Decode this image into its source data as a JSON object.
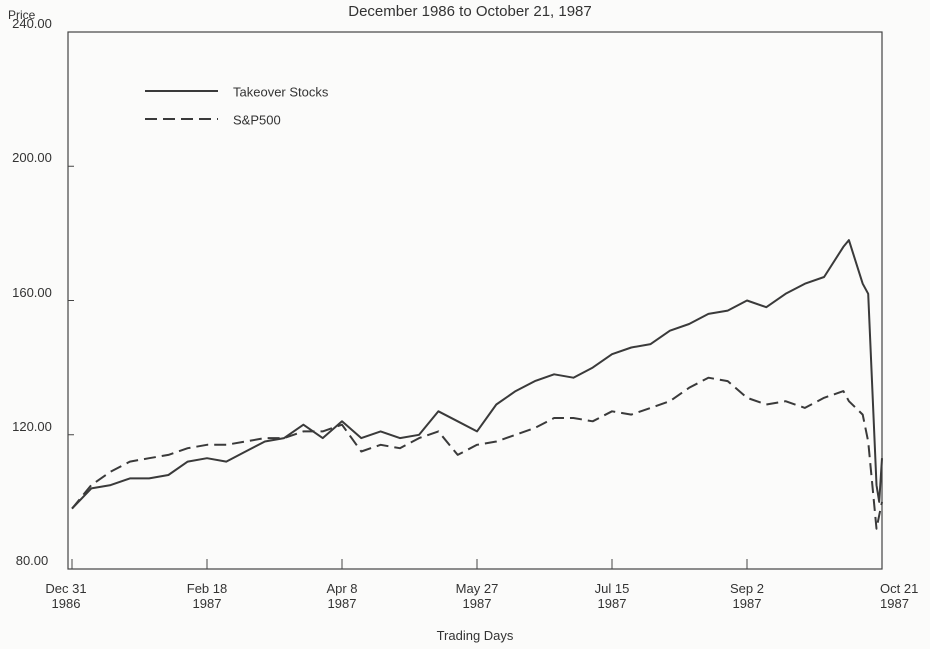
{
  "chart_data": {
    "type": "line",
    "title": "December 1986 to October 21, 1987",
    "y_label": "Price",
    "x_label": "Trading Days",
    "x": [
      "1986-12-31",
      "1987-01-07",
      "1987-01-14",
      "1987-01-21",
      "1987-01-28",
      "1987-02-04",
      "1987-02-11",
      "1987-02-18",
      "1987-02-25",
      "1987-03-04",
      "1987-03-11",
      "1987-03-18",
      "1987-03-25",
      "1987-04-01",
      "1987-04-08",
      "1987-04-15",
      "1987-04-22",
      "1987-04-29",
      "1987-05-06",
      "1987-05-13",
      "1987-05-20",
      "1987-05-27",
      "1987-06-03",
      "1987-06-10",
      "1987-06-17",
      "1987-06-24",
      "1987-07-01",
      "1987-07-08",
      "1987-07-15",
      "1987-07-22",
      "1987-07-29",
      "1987-08-05",
      "1987-08-12",
      "1987-08-19",
      "1987-08-26",
      "1987-09-02",
      "1987-09-09",
      "1987-09-16",
      "1987-09-23",
      "1987-09-30",
      "1987-10-07",
      "1987-10-09",
      "1987-10-14",
      "1987-10-16",
      "1987-10-19",
      "1987-10-20",
      "1987-10-21"
    ],
    "series": [
      {
        "name": "Takeover Stocks",
        "color": "#3a3a3a",
        "dash": "solid",
        "values": [
          98,
          104,
          105,
          107,
          107,
          108,
          112,
          113,
          112,
          115,
          118,
          119,
          123,
          119,
          124,
          119,
          121,
          119,
          120,
          127,
          124,
          121,
          129,
          133,
          136,
          138,
          137,
          140,
          144,
          146,
          147,
          151,
          153,
          156,
          157,
          160,
          158,
          162,
          165,
          167,
          176,
          178,
          165,
          162,
          105,
          100,
          113
        ]
      },
      {
        "name": "S&P500",
        "color": "#3a3a3a",
        "dash": "dashed",
        "values": [
          98,
          105,
          109,
          112,
          113,
          114,
          116,
          117,
          117,
          118,
          119,
          119,
          121,
          121,
          123,
          115,
          117,
          116,
          119,
          121,
          114,
          117,
          118,
          120,
          122,
          125,
          125,
          124,
          127,
          126,
          128,
          130,
          134,
          137,
          136,
          131,
          129,
          130,
          128,
          131,
          133,
          130,
          126,
          118,
          92,
          96,
          100
        ]
      }
    ],
    "xlim": [
      "1986-12-31",
      "1987-10-21"
    ],
    "xticks": [
      {
        "value": "1986-12-31",
        "label": "Dec 31\n1986"
      },
      {
        "value": "1987-02-18",
        "label": "Feb 18\n1987"
      },
      {
        "value": "1987-04-08",
        "label": "Apr 8\n1987"
      },
      {
        "value": "1987-05-27",
        "label": "May 27\n1987"
      },
      {
        "value": "1987-07-15",
        "label": "Jul 15\n1987"
      },
      {
        "value": "1987-09-02",
        "label": "Sep 2\n1987"
      },
      {
        "value": "1987-10-21",
        "label": "Oct 21\n1987"
      }
    ],
    "ylim": [
      80,
      240
    ],
    "yticks": [
      {
        "value": 80,
        "label": "80.00"
      },
      {
        "value": 120,
        "label": "120.00"
      },
      {
        "value": 160,
        "label": "160.00"
      },
      {
        "value": 200,
        "label": "200.00"
      },
      {
        "value": 240,
        "label": "240.00"
      }
    ],
    "legend": "upper left"
  }
}
